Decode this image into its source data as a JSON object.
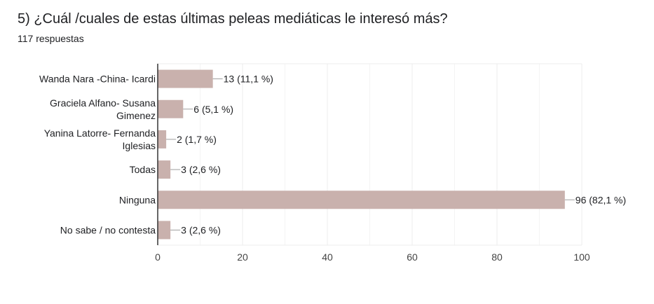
{
  "question": {
    "title": "5) ¿Cuál /cuales de estas últimas peleas mediáticas le interesó más?",
    "responses": "117 respuestas"
  },
  "colors": {
    "bar": "#c9b1ad",
    "text": "#202124",
    "grid": "#ececec",
    "axis": "#333333",
    "leader": "#9e9e9e"
  },
  "chart_data": {
    "type": "bar",
    "orientation": "horizontal",
    "categories": [
      [
        "Wanda Nara -China- Icardi"
      ],
      [
        "Graciela Alfano- Susana",
        "Gimenez"
      ],
      [
        "Yanina Latorre- Fernanda",
        "Iglesias"
      ],
      [
        "Todas"
      ],
      [
        "Ninguna"
      ],
      [
        "No sabe / no contesta"
      ]
    ],
    "values": [
      13,
      6,
      2,
      3,
      96,
      3
    ],
    "data_labels": [
      "13 (11,1 %)",
      "6 (5,1 %)",
      "2 (1,7 %)",
      "3 (2,6 %)",
      "96 (82,1 %)",
      "3 (2,6 %)"
    ],
    "x_ticks": [
      0,
      20,
      40,
      60,
      80,
      100
    ],
    "xlim": [
      0,
      100
    ],
    "grid": true,
    "legend": "none"
  }
}
